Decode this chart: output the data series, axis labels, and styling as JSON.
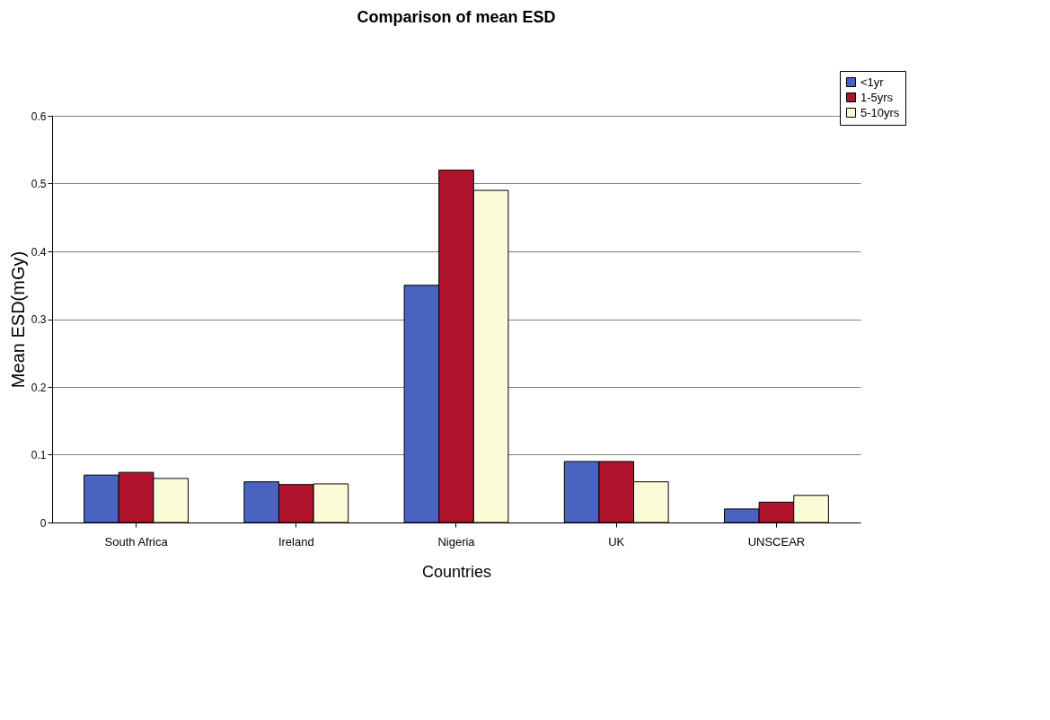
{
  "chart_data": {
    "type": "bar",
    "title": "Comparison of mean ESD",
    "xlabel": "Countries",
    "ylabel": "Mean ESD(mGy)",
    "categories": [
      "South Africa",
      "Ireland",
      "Nigeria",
      "UK",
      "UNSCEAR"
    ],
    "series": [
      {
        "name": "<1yr",
        "color": "#4a63c0",
        "values": [
          0.07,
          0.06,
          0.35,
          0.09,
          0.02
        ]
      },
      {
        "name": "1-5yrs",
        "color": "#b0142c",
        "values": [
          0.074,
          0.056,
          0.52,
          0.09,
          0.03
        ]
      },
      {
        "name": "5-10yrs",
        "color": "#fcfbd8",
        "values": [
          0.065,
          0.057,
          0.49,
          0.06,
          0.04
        ]
      }
    ],
    "ylim": [
      0,
      0.6
    ],
    "yticks": [
      0,
      0.1,
      0.2,
      0.3,
      0.4,
      0.5,
      0.6
    ],
    "grid": "y",
    "legend": "top right"
  }
}
